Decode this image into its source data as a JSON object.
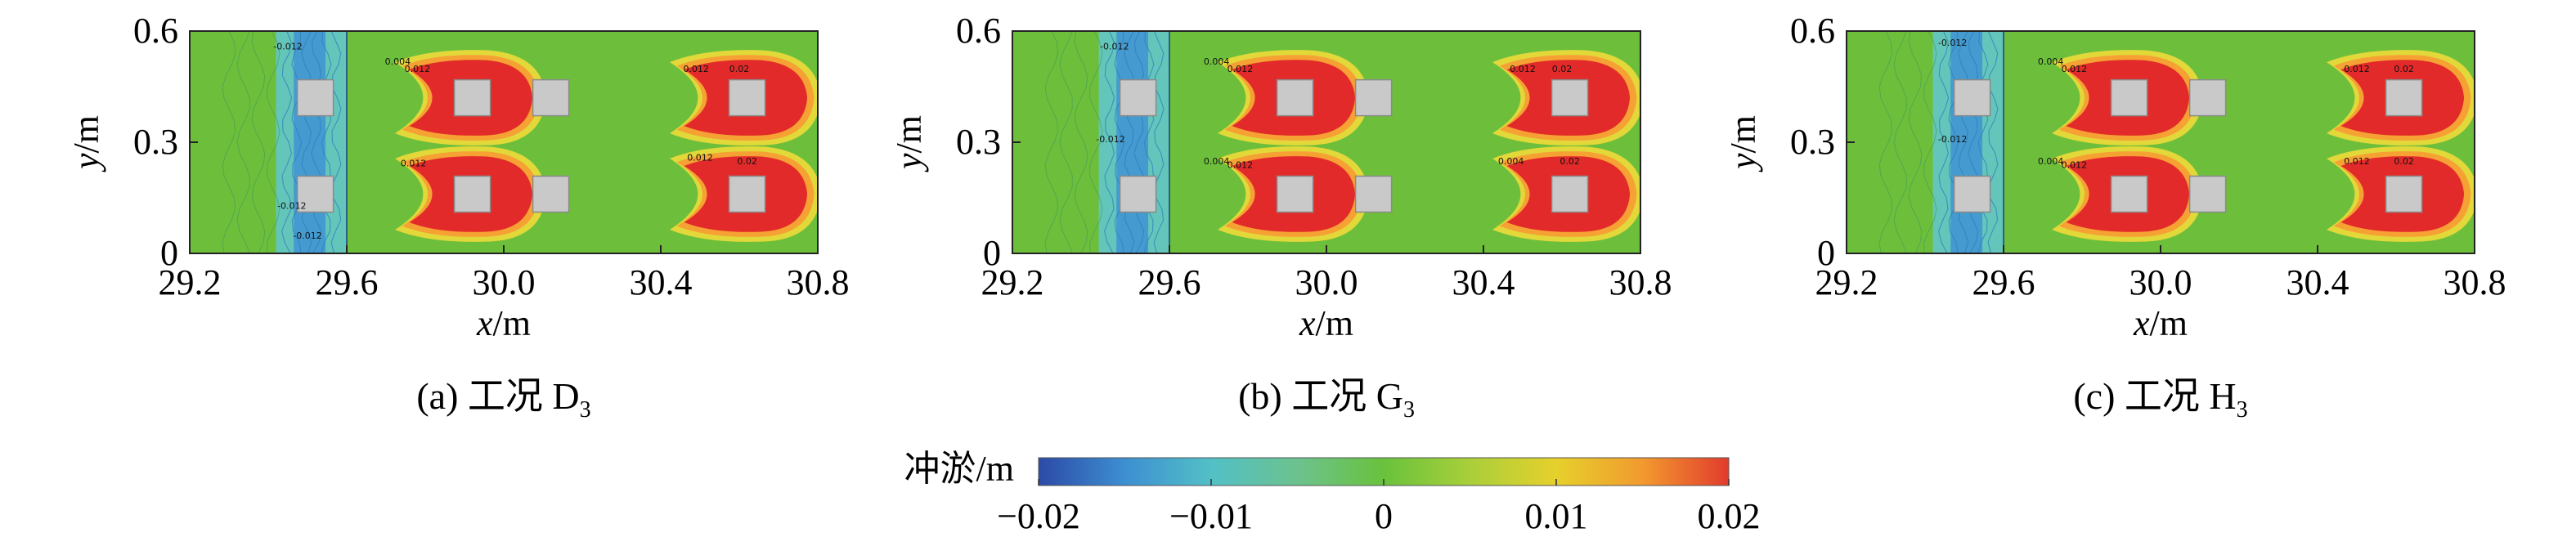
{
  "chart_data": {
    "type": "heatmap",
    "panels": [
      {
        "caption_prefix": "(a) 工况 ",
        "case_letter": "D",
        "case_sub": "3",
        "xlabel_var": "x",
        "xlabel_unit": "/m",
        "ylabel_var": "y",
        "ylabel_unit": "/m",
        "xticks": [
          "29.2",
          "29.6",
          "30.0",
          "30.4",
          "30.8"
        ],
        "yticks": [
          "0",
          "0.3",
          "0.6"
        ],
        "xlim": [
          29.2,
          30.8
        ],
        "ylim": [
          0,
          0.6
        ],
        "front_piers_x": [
          29.52,
          29.92
        ],
        "pier_pairs_x": [
          29.52,
          29.92,
          30.12,
          30.62
        ],
        "scour_plumes": [
          {
            "x": 29.92,
            "y": 0.42
          },
          {
            "x": 29.92,
            "y": 0.16
          },
          {
            "x": 30.62,
            "y": 0.42
          },
          {
            "x": 30.62,
            "y": 0.16
          }
        ],
        "contour_labels": [
          {
            "text": "0.004",
            "x": 29.73,
            "y": 0.51
          },
          {
            "text": "0.012",
            "x": 29.78,
            "y": 0.49
          },
          {
            "text": "0.012",
            "x": 29.77,
            "y": 0.235
          },
          {
            "text": "0.012",
            "x": 30.49,
            "y": 0.49
          },
          {
            "text": "0.02",
            "x": 30.6,
            "y": 0.49
          },
          {
            "text": "0.012",
            "x": 30.5,
            "y": 0.25
          },
          {
            "text": "0.02",
            "x": 30.62,
            "y": 0.24
          },
          {
            "text": "-0.012",
            "x": 29.45,
            "y": 0.55
          },
          {
            "text": "-0.012",
            "x": 29.46,
            "y": 0.12
          },
          {
            "text": "-0.012",
            "x": 29.5,
            "y": 0.04
          }
        ]
      },
      {
        "caption_prefix": "(b) 工况 ",
        "case_letter": "G",
        "case_sub": "3",
        "xlabel_var": "x",
        "xlabel_unit": "/m",
        "ylabel_var": "y",
        "ylabel_unit": "/m",
        "xticks": [
          "29.2",
          "29.6",
          "30.0",
          "30.4",
          "30.8"
        ],
        "yticks": [
          "0",
          "0.3",
          "0.6"
        ],
        "xlim": [
          29.2,
          30.8
        ],
        "ylim": [
          0,
          0.6
        ],
        "pier_pairs_x": [
          29.52,
          29.92,
          30.12,
          30.62
        ],
        "scour_plumes": [
          {
            "x": 29.92,
            "y": 0.42
          },
          {
            "x": 29.92,
            "y": 0.16
          },
          {
            "x": 30.62,
            "y": 0.42
          },
          {
            "x": 30.62,
            "y": 0.16
          }
        ],
        "contour_labels": [
          {
            "text": "0.004",
            "x": 29.72,
            "y": 0.51
          },
          {
            "text": "0.012",
            "x": 29.78,
            "y": 0.49
          },
          {
            "text": "0.004",
            "x": 29.72,
            "y": 0.24
          },
          {
            "text": "0.012",
            "x": 29.78,
            "y": 0.23
          },
          {
            "text": "0.012",
            "x": 30.5,
            "y": 0.49
          },
          {
            "text": "0.02",
            "x": 30.6,
            "y": 0.49
          },
          {
            "text": "0.004",
            "x": 30.47,
            "y": 0.24
          },
          {
            "text": "0.02",
            "x": 30.62,
            "y": 0.24
          },
          {
            "text": "-0.012",
            "x": 29.46,
            "y": 0.55
          },
          {
            "text": "-0.012",
            "x": 29.45,
            "y": 0.3
          }
        ]
      },
      {
        "caption_prefix": "(c) 工况 ",
        "case_letter": "H",
        "case_sub": "3",
        "xlabel_var": "x",
        "xlabel_unit": "/m",
        "ylabel_var": "y",
        "ylabel_unit": "/m",
        "xticks": [
          "29.2",
          "29.6",
          "30.0",
          "30.4",
          "30.8"
        ],
        "yticks": [
          "0",
          "0.3",
          "0.6"
        ],
        "xlim": [
          29.2,
          30.8
        ],
        "ylim": [
          0,
          0.6
        ],
        "pier_pairs_x": [
          29.52,
          29.92,
          30.12,
          30.62
        ],
        "scour_plumes": [
          {
            "x": 29.92,
            "y": 0.42
          },
          {
            "x": 29.92,
            "y": 0.16
          },
          {
            "x": 30.62,
            "y": 0.42
          },
          {
            "x": 30.62,
            "y": 0.16
          }
        ],
        "contour_labels": [
          {
            "text": "0.004",
            "x": 29.72,
            "y": 0.51
          },
          {
            "text": "0.012",
            "x": 29.78,
            "y": 0.49
          },
          {
            "text": "0.004",
            "x": 29.72,
            "y": 0.24
          },
          {
            "text": "0.012",
            "x": 29.78,
            "y": 0.23
          },
          {
            "text": "0.012",
            "x": 30.5,
            "y": 0.49
          },
          {
            "text": "0.02",
            "x": 30.62,
            "y": 0.49
          },
          {
            "text": "0.012",
            "x": 30.5,
            "y": 0.24
          },
          {
            "text": "0.02",
            "x": 30.62,
            "y": 0.24
          },
          {
            "text": "-0.012",
            "x": 29.47,
            "y": 0.56
          },
          {
            "text": "-0.012",
            "x": 29.47,
            "y": 0.3
          }
        ]
      }
    ],
    "colorbar": {
      "label": "冲淤/m",
      "ticks": [
        "−0.02",
        "−0.01",
        "0",
        "0.01",
        "0.02"
      ],
      "range": [
        -0.02,
        0.02
      ],
      "colors": [
        "#2c4aa7",
        "#3d8fd1",
        "#52c0c6",
        "#6cc28e",
        "#69c23c",
        "#a9cf3a",
        "#e6d02c",
        "#f29a2e",
        "#e23b2d"
      ]
    },
    "colors": {
      "background_zero": "#6dbf3b",
      "deposition_max": "#e32a2a",
      "deposition_mid": "#f6a133",
      "deposition_low": "#e2d83a",
      "erosion": "#3f93d4",
      "erosion_light": "#63c6c9",
      "pier": "#c9c9c9"
    }
  }
}
